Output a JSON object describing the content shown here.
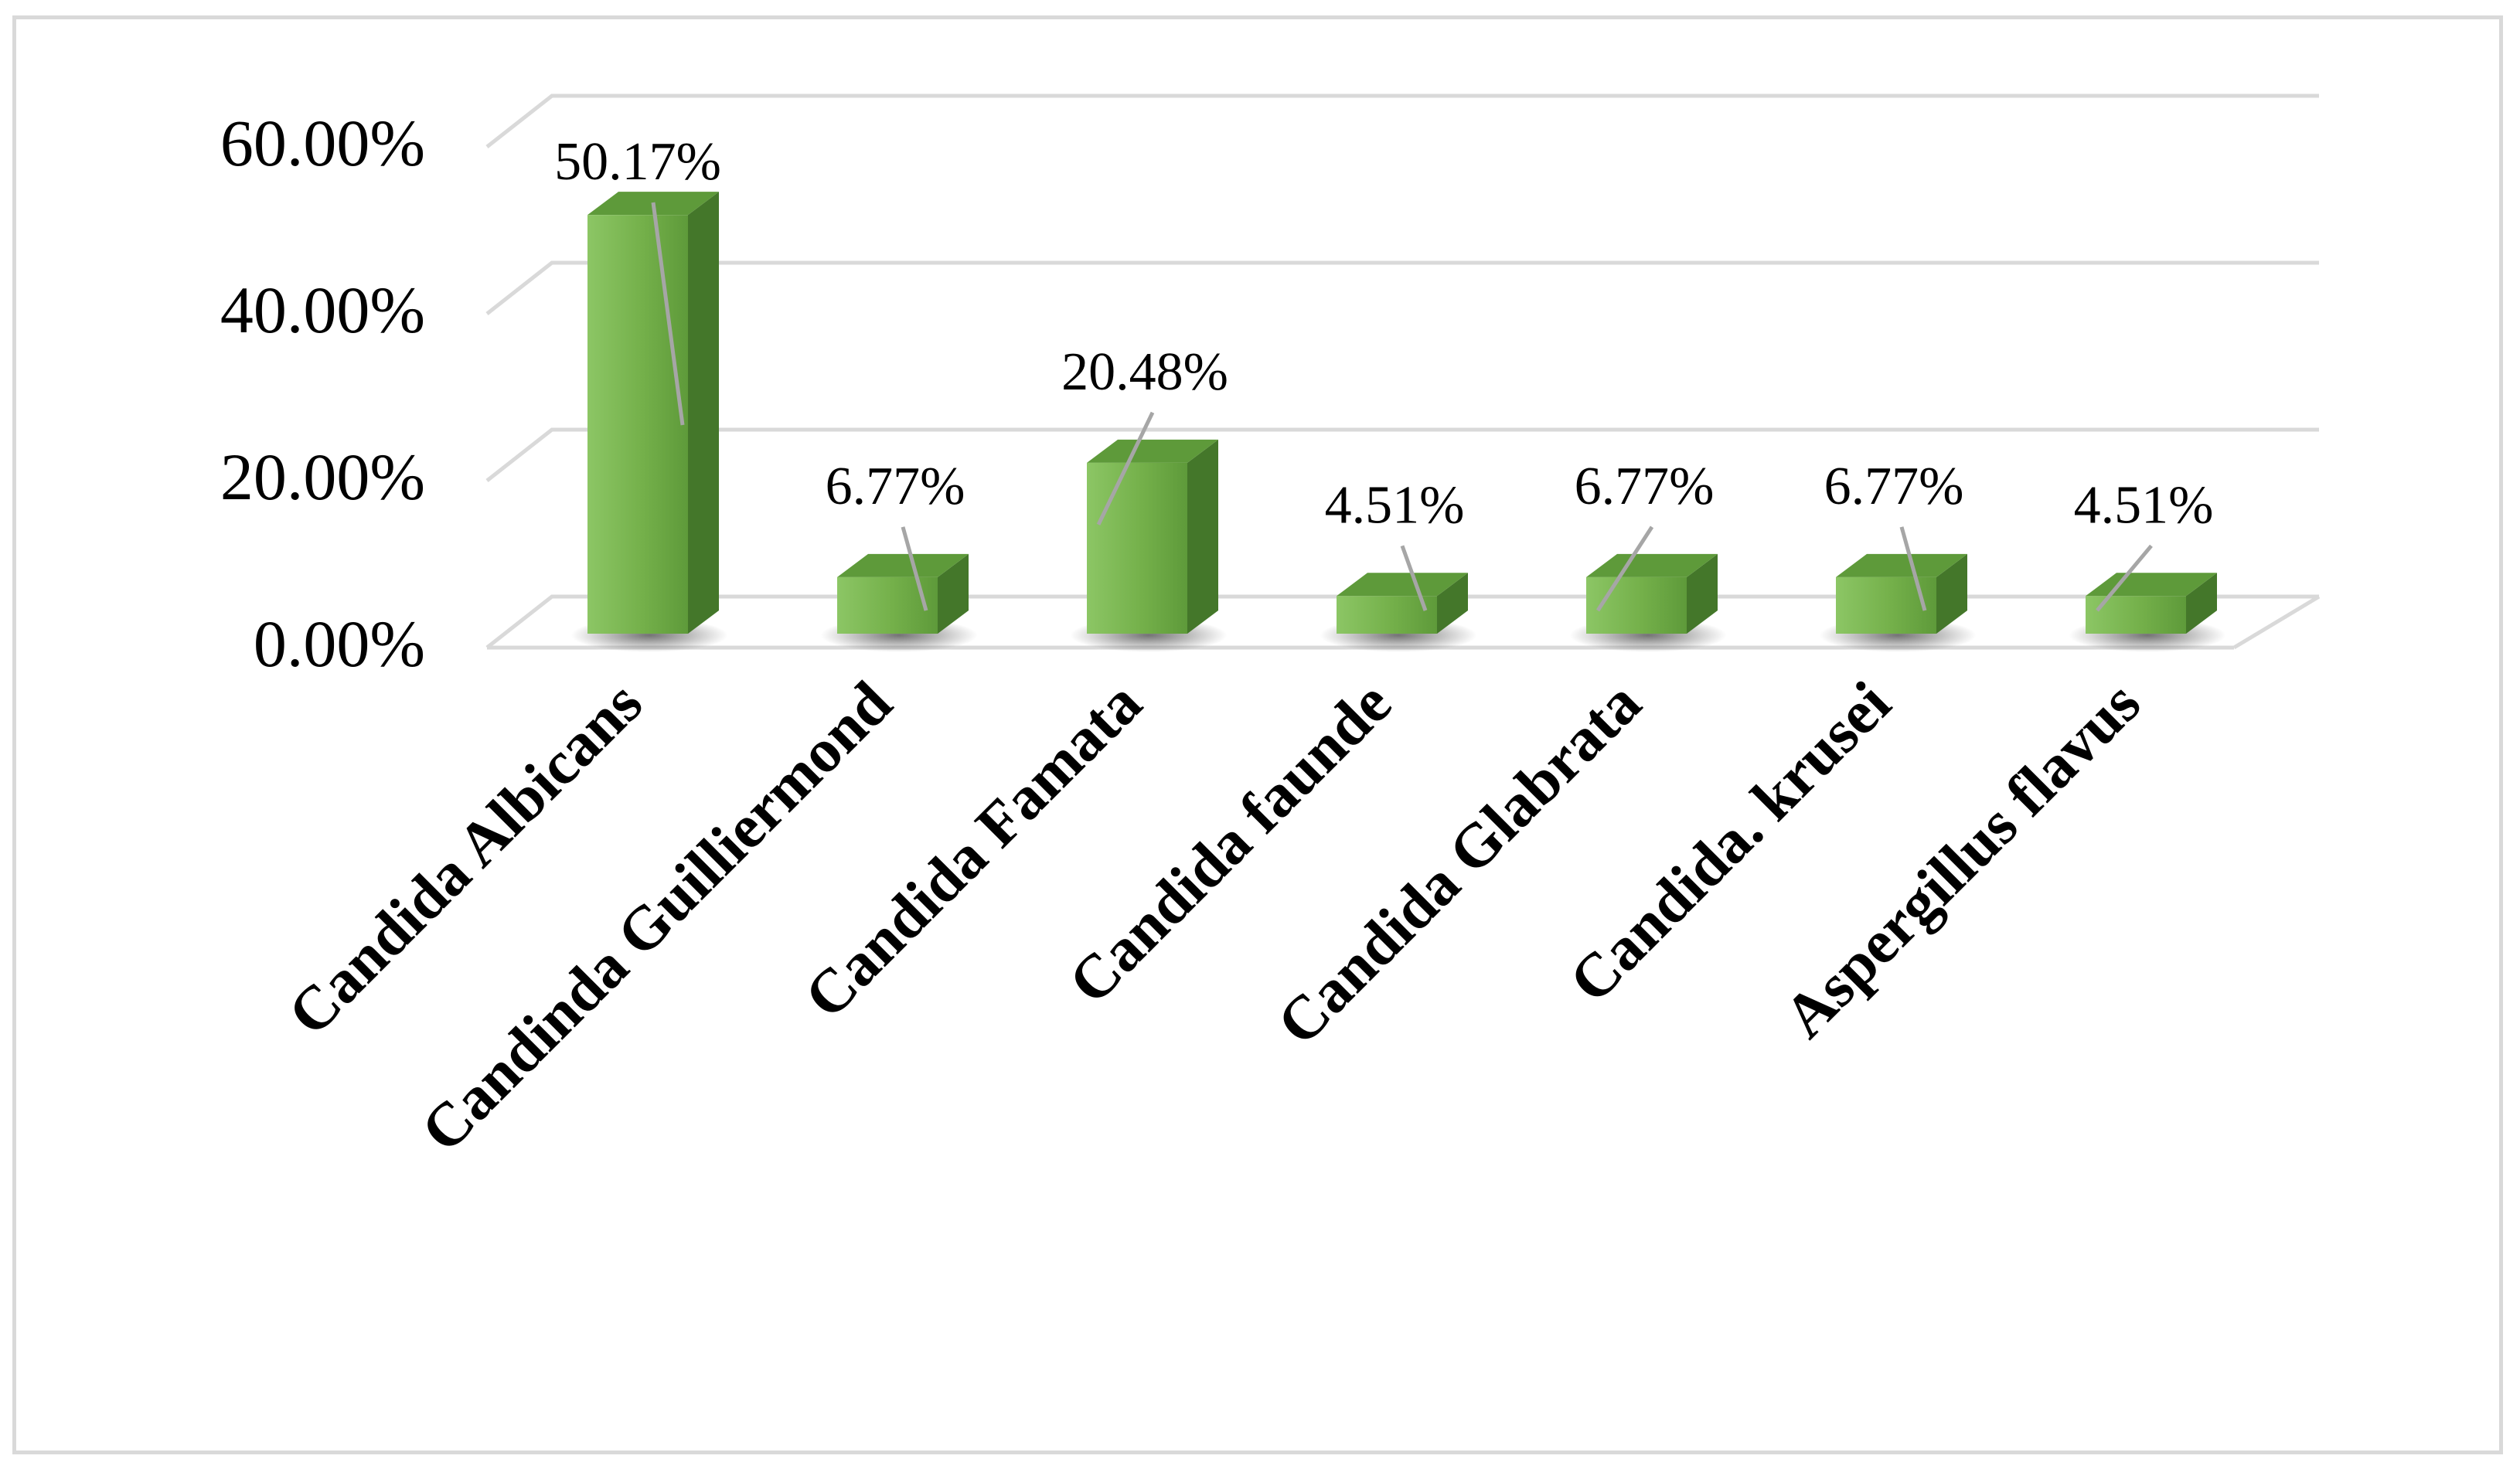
{
  "chart_data": {
    "type": "bar",
    "style": "3d-column",
    "title": "",
    "xlabel": "",
    "ylabel": "",
    "categories": [
      "Candida Albicans",
      "Candinda Guilliermond",
      "Candida Famata",
      "Candida faunde",
      "Candida Glabrata",
      "Candida. krusei",
      "Aspergillus flavus"
    ],
    "values": [
      50.17,
      6.77,
      20.48,
      4.51,
      6.77,
      6.77,
      4.51
    ],
    "data_labels": [
      "50.17%",
      "6.77%",
      "20.48%",
      "4.51%",
      "6.77%",
      "6.77%",
      "4.51%"
    ],
    "ylim": [
      0,
      60
    ],
    "yticks": [
      0,
      20,
      40,
      60
    ],
    "ytick_labels": [
      "0.00%",
      "20.00%",
      "40.00%",
      "60.00%"
    ],
    "grid": true,
    "legend": "none",
    "colors": {
      "bar_front": "#70ad47",
      "bar_front_light": "#8cc665",
      "bar_top": "#5e9a3a",
      "bar_side": "#44772a",
      "gridline": "#d9d9d9",
      "leader_line": "#a6a6a6",
      "frame": "#d9d9d9"
    }
  }
}
